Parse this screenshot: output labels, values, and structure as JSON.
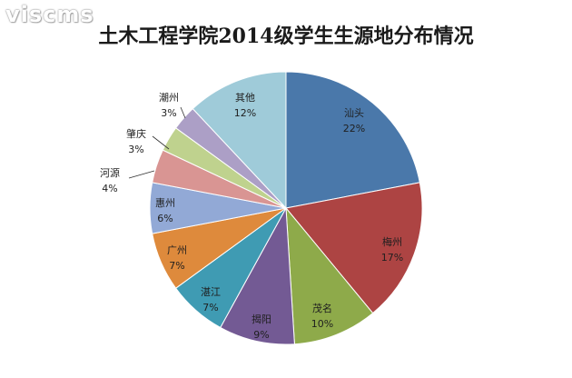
{
  "watermark": "viscms",
  "chart_data": {
    "type": "pie",
    "title": "土木工程学院2014级学生生源地分布情况",
    "slices": [
      {
        "label": "汕头",
        "value": 22,
        "pct_text": "22%",
        "color": "#4a78aa"
      },
      {
        "label": "梅州",
        "value": 17,
        "pct_text": "17%",
        "color": "#ad4443"
      },
      {
        "label": "茂名",
        "value": 10,
        "pct_text": "10%",
        "color": "#8eaa4a"
      },
      {
        "label": "揭阳",
        "value": 9,
        "pct_text": "9%",
        "color": "#735a94"
      },
      {
        "label": "湛江",
        "value": 7,
        "pct_text": "7%",
        "color": "#3f9bb3"
      },
      {
        "label": "广州",
        "value": 7,
        "pct_text": "7%",
        "color": "#de8a3c"
      },
      {
        "label": "惠州",
        "value": 6,
        "pct_text": "6%",
        "color": "#92a9d6"
      },
      {
        "label": "河源",
        "value": 4,
        "pct_text": "4%",
        "color": "#d99593"
      },
      {
        "label": "肇庆",
        "value": 3,
        "pct_text": "3%",
        "color": "#bfd28e"
      },
      {
        "label": "潮州",
        "value": 3,
        "pct_text": "3%",
        "color": "#ac9fc6"
      },
      {
        "label": "其他",
        "value": 12,
        "pct_text": "12%",
        "color": "#9fcbd9"
      }
    ],
    "legend": "none"
  }
}
